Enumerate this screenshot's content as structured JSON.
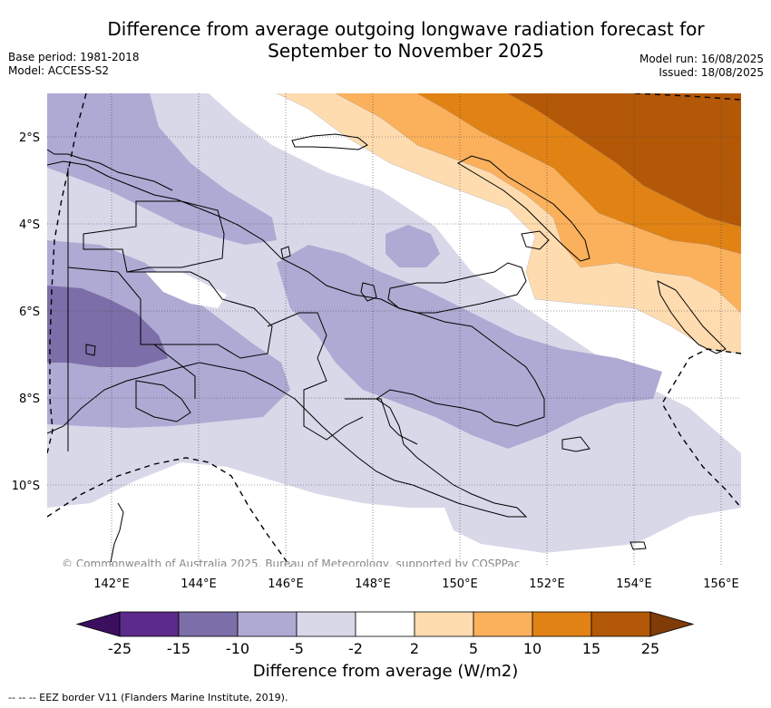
{
  "title": "Difference from average outgoing longwave radiation forecast for September to November 2025",
  "meta": {
    "base_period": "Base period: 1981-2018",
    "model": "Model: ACCESS-S2",
    "model_run": "Model run: 16/08/2025",
    "issued": "Issued: 18/08/2025"
  },
  "map": {
    "lat_labels": [
      "2°S",
      "4°S",
      "6°S",
      "8°S",
      "10°S"
    ],
    "lon_labels": [
      "142°E",
      "144°E",
      "146°E",
      "148°E",
      "150°E",
      "152°E",
      "154°E",
      "156°E"
    ],
    "copyright": "© Commonwealth of Australia 2025, Bureau of Meteorology, supported by COSPPac"
  },
  "legend": {
    "ticks": [
      "-25",
      "-15",
      "-10",
      "-5",
      "-2",
      "2",
      "5",
      "10",
      "15",
      "25"
    ],
    "colors": [
      "#3b0f5e",
      "#5b2a8a",
      "#7c6ea8",
      "#aeaad3",
      "#d8d8e9",
      "#ffffff",
      "#fedcb0",
      "#fbb15c",
      "#e08214",
      "#b35806",
      "#7f3b08"
    ],
    "title": "Difference from average (W/m2)"
  },
  "footnote": "--  --  -- EEZ border V11 (Flanders Marine Institute, 2019)."
}
